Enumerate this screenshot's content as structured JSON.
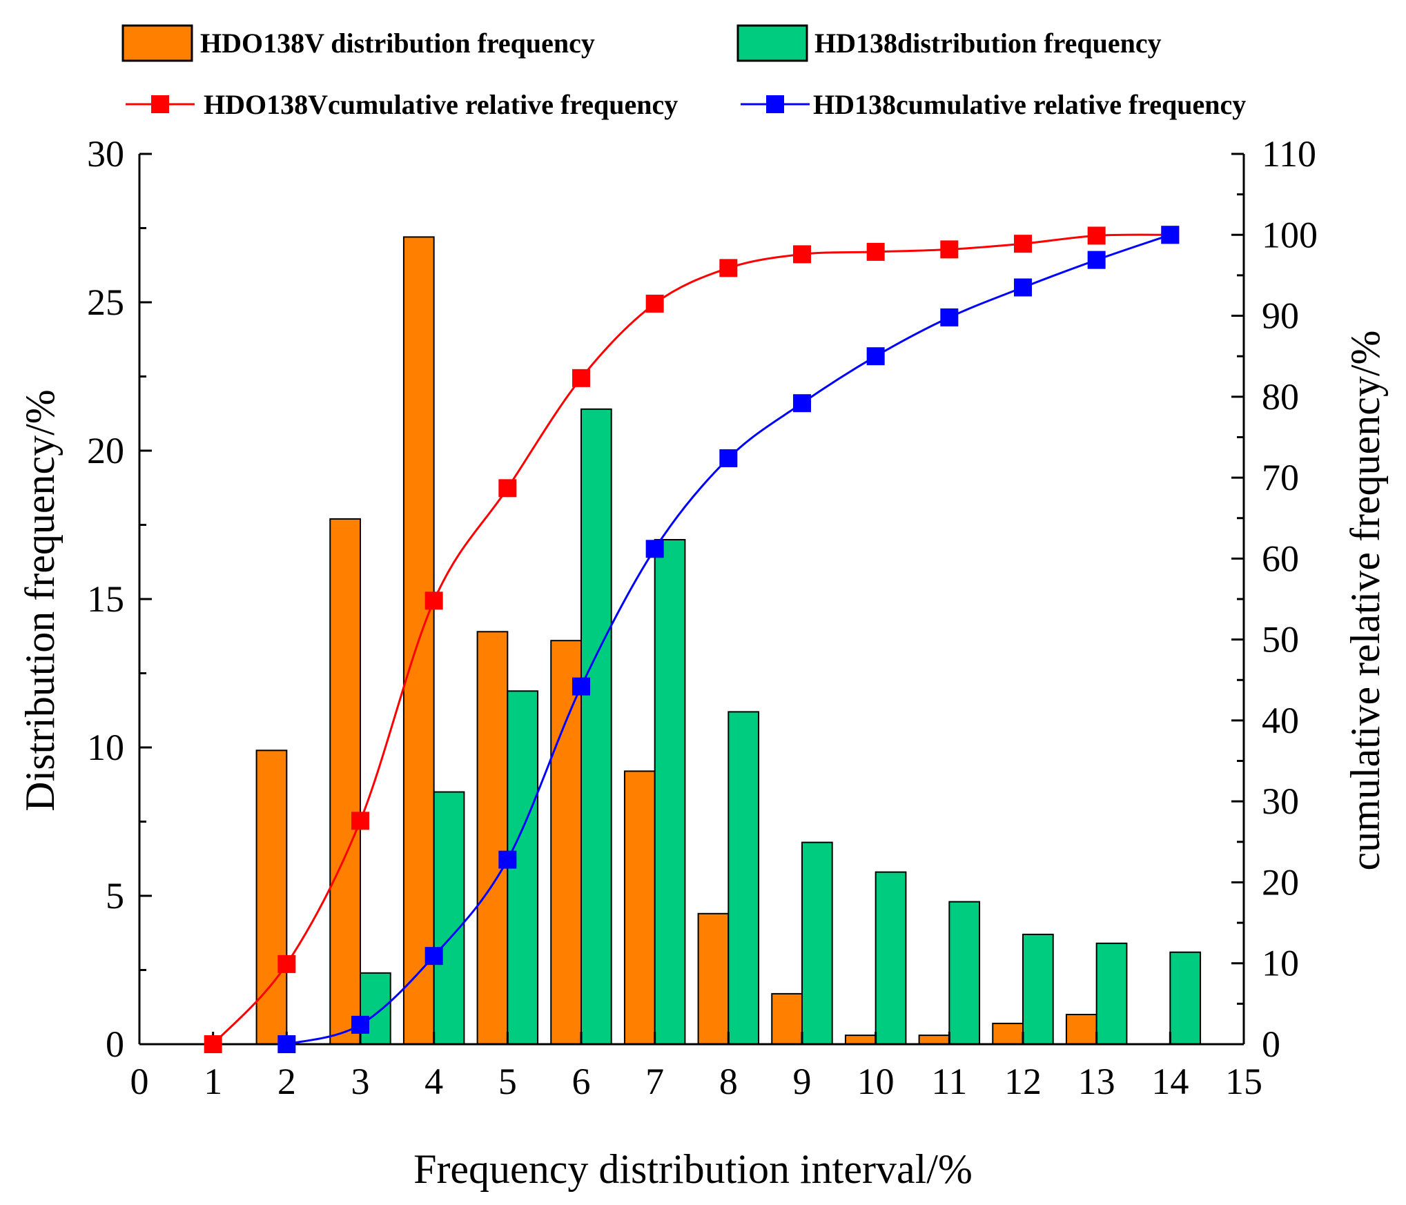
{
  "chart_data": {
    "type": "bar",
    "x": [
      1,
      2,
      3,
      4,
      5,
      6,
      7,
      8,
      9,
      10,
      11,
      12,
      13,
      14
    ],
    "x_ticks": [
      0,
      1,
      2,
      3,
      4,
      5,
      6,
      7,
      8,
      9,
      10,
      11,
      12,
      13,
      14,
      15
    ],
    "xlim": [
      0,
      15
    ],
    "xlabel": "Frequency distribution interval/%",
    "ylabel_left": "Distribution frequency/%",
    "ylabel_right": "cumulative relative frequency/%",
    "ylim_left": [
      0,
      30
    ],
    "ylim_right": [
      0,
      110
    ],
    "y_ticks_left": [
      0,
      5,
      10,
      15,
      20,
      25,
      30
    ],
    "y_ticks_right": [
      0,
      10,
      20,
      30,
      40,
      50,
      60,
      70,
      80,
      90,
      100,
      110
    ],
    "grid": false,
    "legend_position": "top",
    "bar_series": [
      {
        "name": "HDO138V distribution frequency",
        "color": "#ff8000",
        "values": [
          0,
          9.9,
          17.7,
          27.2,
          13.9,
          13.6,
          9.2,
          4.4,
          1.7,
          0.3,
          0.3,
          0.7,
          1.0,
          0
        ]
      },
      {
        "name": "HD138distribution frequency",
        "color": "#00cc80",
        "values": [
          0,
          0,
          2.4,
          8.5,
          11.9,
          21.4,
          17.0,
          11.2,
          6.8,
          5.8,
          4.8,
          3.7,
          3.4,
          3.1
        ]
      }
    ],
    "line_series": [
      {
        "name": "HDO138Vcumulative relative frequency",
        "color": "#ff0000",
        "axis": "right",
        "x": [
          1,
          2,
          3,
          4,
          5,
          6,
          7,
          8,
          9,
          10,
          11,
          12,
          13,
          14
        ],
        "values": [
          0,
          9.9,
          27.6,
          54.8,
          68.7,
          82.3,
          91.5,
          95.9,
          97.6,
          97.9,
          98.2,
          98.9,
          99.9,
          100
        ]
      },
      {
        "name": "HD138cumulative relative frequency",
        "color": "#0000ff",
        "axis": "right",
        "x": [
          2,
          3,
          4,
          5,
          6,
          7,
          8,
          9,
          10,
          11,
          12,
          13,
          14
        ],
        "values": [
          0,
          2.4,
          10.9,
          22.8,
          44.2,
          61.2,
          72.4,
          79.2,
          85.0,
          89.8,
          93.5,
          96.9,
          100
        ]
      }
    ]
  }
}
